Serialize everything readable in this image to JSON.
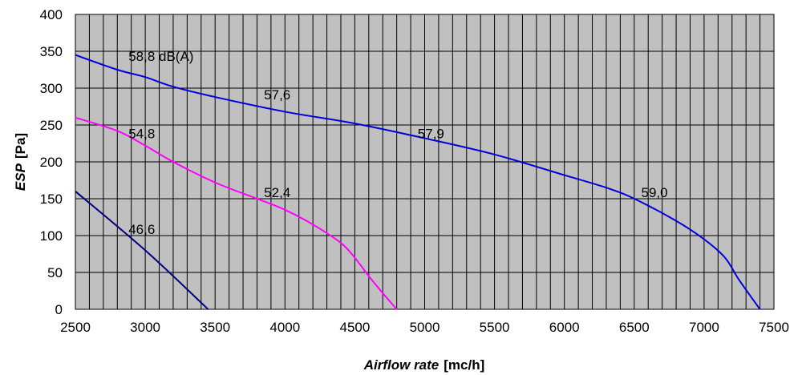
{
  "chart_data": {
    "type": "line",
    "xlabel_italic": "Airflow rate",
    "xlabel_unit": "[mc/h]",
    "ylabel_italic": "ESP",
    "ylabel_unit": "[Pa]",
    "xlim": [
      2500,
      7500
    ],
    "ylim": [
      0,
      400
    ],
    "x_ticks": [
      "2500",
      "3000",
      "3500",
      "4000",
      "4500",
      "5000",
      "5500",
      "6000",
      "6500",
      "7000",
      "7500"
    ],
    "y_ticks": [
      "0",
      "50",
      "100",
      "150",
      "200",
      "250",
      "300",
      "350",
      "400"
    ],
    "grid": true,
    "plot_background": "#c0c0c0",
    "series": [
      {
        "color": "#0000dd",
        "x": [
          2500,
          2800,
          3000,
          3200,
          3500,
          4000,
          4500,
          5000,
          5500,
          6000,
          6300,
          6500,
          6800,
          7000,
          7150,
          7250,
          7400
        ],
        "y": [
          345,
          325,
          315,
          302,
          288,
          268,
          252,
          232,
          210,
          182,
          165,
          150,
          120,
          95,
          70,
          40,
          0
        ]
      },
      {
        "color": "#ff00ff",
        "x": [
          2500,
          2800,
          3000,
          3200,
          3500,
          3800,
          4000,
          4200,
          4400,
          4500,
          4600,
          4700,
          4800
        ],
        "y": [
          260,
          242,
          222,
          200,
          172,
          150,
          135,
          115,
          90,
          70,
          45,
          22,
          0
        ]
      },
      {
        "color": "#000080",
        "x": [
          2500,
          3000,
          3450
        ],
        "y": [
          160,
          80,
          0
        ]
      }
    ],
    "annotations": [
      {
        "text": "58,8 dB(A)",
        "x": 2880,
        "y": 337
      },
      {
        "text": "57,6",
        "x": 3850,
        "y": 285
      },
      {
        "text": "57,9",
        "x": 4950,
        "y": 232
      },
      {
        "text": "59,0",
        "x": 6550,
        "y": 152
      },
      {
        "text": "54,8",
        "x": 2880,
        "y": 232
      },
      {
        "text": "52,4",
        "x": 3850,
        "y": 152
      },
      {
        "text": "46,6",
        "x": 2880,
        "y": 102
      }
    ]
  }
}
